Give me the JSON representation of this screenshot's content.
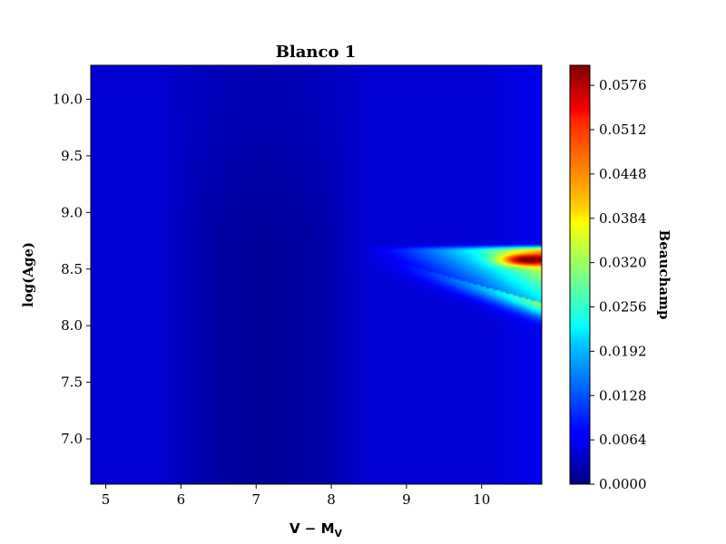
{
  "chart_data": {
    "type": "heatmap",
    "title": "Blanco 1",
    "xlabel_main": "V − M",
    "xlabel_sub": "V",
    "ylabel": "log(Age)",
    "colorbar_label": "Beauchamp",
    "colormap": "jet",
    "xlim": [
      4.8,
      10.8
    ],
    "ylim": [
      6.6,
      10.3
    ],
    "x_ticks": [
      "5",
      "6",
      "7",
      "8",
      "9",
      "10"
    ],
    "x_tick_values": [
      5,
      6,
      7,
      8,
      9,
      10
    ],
    "y_ticks": [
      "7.0",
      "7.5",
      "8.0",
      "8.5",
      "9.0",
      "9.5",
      "10.0"
    ],
    "y_tick_values": [
      7.0,
      7.5,
      8.0,
      8.5,
      9.0,
      9.5,
      10.0
    ],
    "colorbar_range": [
      0.0,
      0.0605
    ],
    "colorbar_ticks": [
      "0.0000",
      "0.0064",
      "0.0128",
      "0.0192",
      "0.0256",
      "0.0320",
      "0.0384",
      "0.0448",
      "0.0512",
      "0.0576"
    ],
    "colorbar_tick_values": [
      0.0,
      0.0064,
      0.0128,
      0.0192,
      0.0256,
      0.032,
      0.0384,
      0.0448,
      0.0512,
      0.0576
    ],
    "features": {
      "background_value": 0.005,
      "minimum_region": {
        "x_range": [
          6.2,
          8.0
        ],
        "value": 0.0015
      },
      "peak": {
        "x": 10.6,
        "y": 8.58,
        "value": 0.06
      },
      "wedge": {
        "x_start": 8.3,
        "x_end": 10.8,
        "y_top": 8.67,
        "y_bottom_at_end": 8.2
      }
    }
  }
}
